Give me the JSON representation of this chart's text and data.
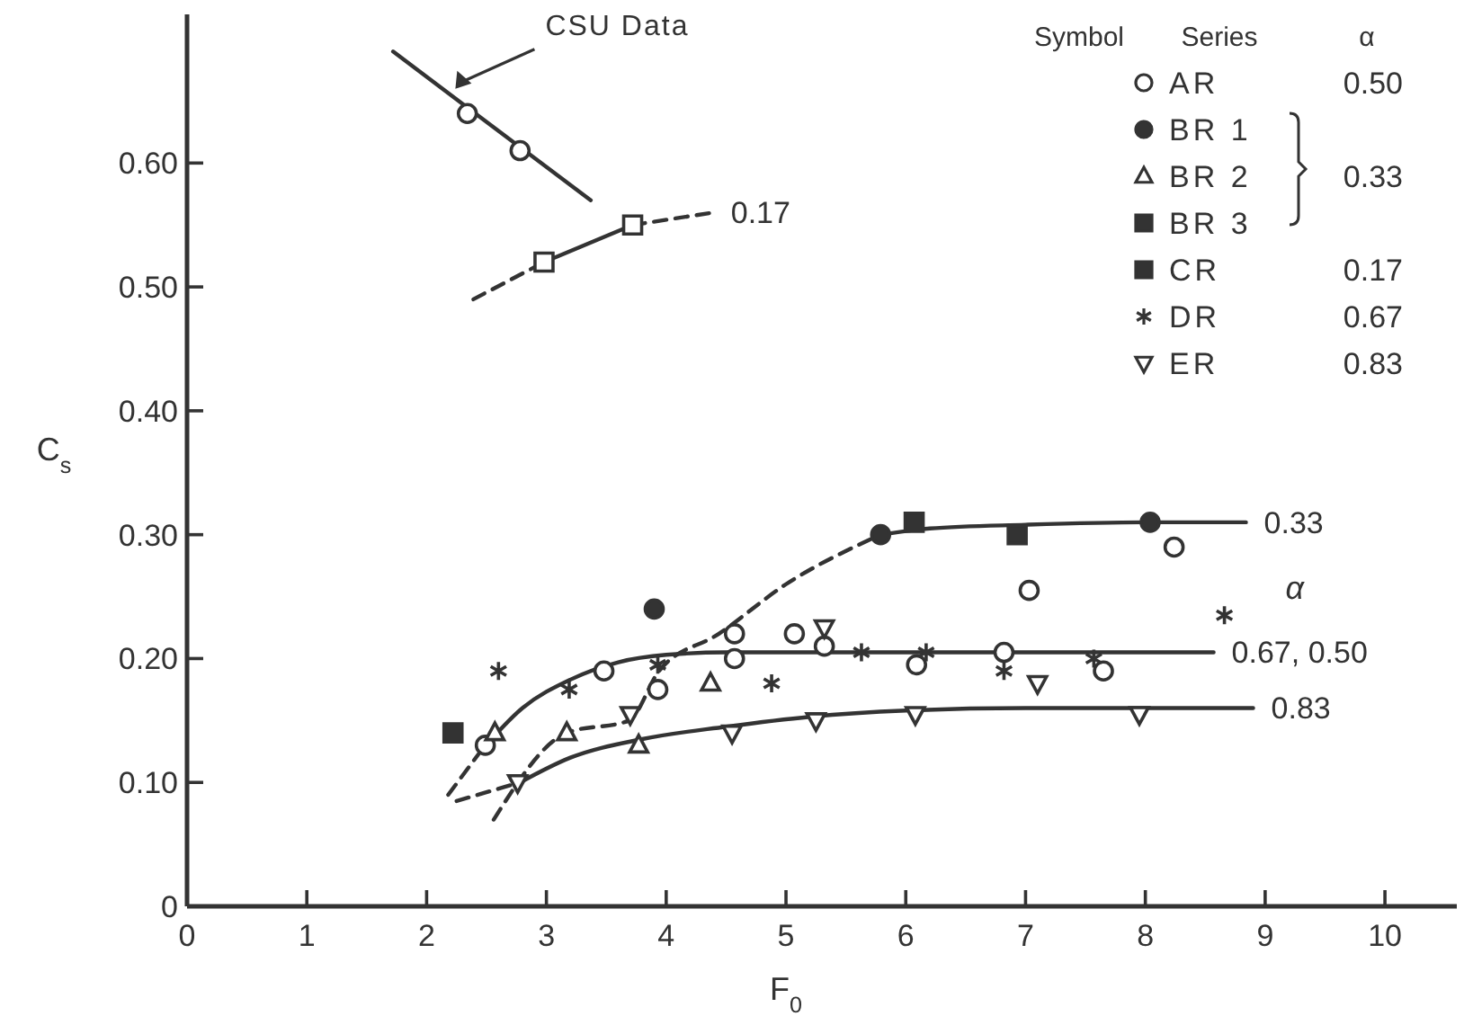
{
  "chart_data": {
    "type": "scatter",
    "xlabel": "F$_{0}$",
    "ylabel": "C$_{s}$",
    "xlim": [
      0,
      10.6
    ],
    "ylim": [
      0,
      0.72
    ],
    "xticks": [
      0,
      1,
      2,
      3,
      4,
      5,
      6,
      7,
      8,
      9,
      10
    ],
    "yticks": [
      0,
      {
        "value": 0.1,
        "label": "0.10"
      },
      {
        "value": 0.2,
        "label": "0.20"
      },
      {
        "value": 0.3,
        "label": "0.30"
      },
      {
        "value": 0.4,
        "label": "0.40"
      },
      {
        "value": 0.5,
        "label": "0.50"
      },
      {
        "value": 0.6,
        "label": "0.60"
      }
    ],
    "grid": false,
    "legend": "top right",
    "series": [
      {
        "type": "line",
        "color": "#333333",
        "line_style": "solid",
        "marker": "none",
        "x": [
          1.72,
          3.37
        ],
        "values": [
          0.69,
          0.57
        ]
      },
      {
        "type": "line",
        "color": "#333333",
        "line_style": "dashed",
        "marker": "none",
        "x": [
          2.39,
          2.98
        ],
        "values": [
          0.49,
          0.52
        ]
      },
      {
        "type": "line",
        "color": "#333333",
        "line_style": "solid",
        "marker": "none",
        "x": [
          2.98,
          3.72
        ],
        "values": [
          0.52,
          0.55
        ]
      },
      {
        "type": "line",
        "color": "#333333",
        "line_style": "dashed",
        "marker": "none",
        "x": [
          3.72,
          4.39
        ],
        "values": [
          0.55,
          0.56
        ]
      },
      {
        "type": "line",
        "color": "#333333",
        "line_style": "dashed",
        "marker": "none",
        "x": [
          2.56,
          3.17,
          3.69,
          3.94,
          4.44,
          5.0,
          5.79
        ],
        "values": [
          0.07,
          0.14,
          0.15,
          0.19,
          0.22,
          0.26,
          0.3
        ]
      },
      {
        "type": "line",
        "color": "#333333",
        "line_style": "solid",
        "marker": "none",
        "x": [
          5.79,
          6.2,
          7.0,
          8.0,
          8.84
        ],
        "values": [
          0.3,
          0.305,
          0.308,
          0.31,
          0.31
        ]
      },
      {
        "type": "line",
        "color": "#333333",
        "line_style": "dashed",
        "marker": "none",
        "x": [
          2.18,
          2.45
        ],
        "values": [
          0.09,
          0.125
        ]
      },
      {
        "type": "line",
        "color": "#333333",
        "line_style": "solid",
        "marker": "none",
        "x": [
          2.45,
          2.8,
          3.2,
          3.6,
          4.0,
          4.5,
          5.5,
          8.57
        ],
        "values": [
          0.125,
          0.16,
          0.183,
          0.197,
          0.203,
          0.205,
          0.205,
          0.205
        ]
      },
      {
        "type": "line",
        "color": "#333333",
        "line_style": "dashed",
        "marker": "none",
        "x": [
          2.25,
          2.78
        ],
        "values": [
          0.085,
          0.1
        ]
      },
      {
        "type": "line",
        "color": "#333333",
        "line_style": "solid",
        "marker": "none",
        "x": [
          2.78,
          3.2,
          3.8,
          4.5,
          5.2,
          6.0,
          7.0,
          8.9
        ],
        "values": [
          0.1,
          0.12,
          0.135,
          0.145,
          0.153,
          0.158,
          0.16,
          0.16
        ]
      },
      {
        "color": "#333333",
        "marker": "circle",
        "x": [
          2.34,
          2.78
        ],
        "values": [
          0.64,
          0.61
        ]
      },
      {
        "color": "#333333",
        "marker": "square",
        "x": [
          2.98,
          3.72
        ],
        "values": [
          0.52,
          0.55
        ]
      },
      {
        "name": "AR",
        "color": "#333333",
        "marker": "circle",
        "x": [
          2.49,
          3.48,
          3.93,
          4.57,
          4.57,
          5.07,
          5.32,
          6.09,
          6.82,
          7.03,
          7.65,
          8.24
        ],
        "values": [
          0.13,
          0.19,
          0.175,
          0.22,
          0.2,
          0.22,
          0.21,
          0.195,
          0.205,
          0.255,
          0.19,
          0.29
        ]
      },
      {
        "name": "BR 1",
        "color": "#333333",
        "marker": "circle-filled",
        "x": [
          3.9,
          5.79,
          8.04
        ],
        "values": [
          0.24,
          0.3,
          0.31
        ]
      },
      {
        "name": "BR 2",
        "color": "#333333",
        "marker": "triangle",
        "x": [
          2.57,
          3.17,
          3.77,
          4.37
        ],
        "values": [
          0.14,
          0.14,
          0.13,
          0.18
        ]
      },
      {
        "name": "BR 3",
        "color": "#333333",
        "marker": "square-filled",
        "x": [
          6.07,
          6.93
        ],
        "values": [
          0.31,
          0.3
        ]
      },
      {
        "name": "CR",
        "color": "#333333",
        "marker": "square-filled",
        "x": [
          2.22
        ],
        "values": [
          0.14
        ]
      },
      {
        "name": "DR",
        "color": "#333333",
        "marker": "cross",
        "x": [
          2.6,
          3.19,
          3.93,
          4.88,
          5.63,
          6.17,
          6.82,
          7.57,
          8.66
        ],
        "values": [
          0.19,
          0.175,
          0.195,
          0.18,
          0.205,
          0.205,
          0.19,
          0.2,
          0.235
        ]
      },
      {
        "name": "ER",
        "color": "#333333",
        "marker": "triangle-down",
        "x": [
          2.76,
          3.7,
          4.55,
          5.25,
          5.32,
          6.08,
          7.1,
          7.95
        ],
        "values": [
          0.1,
          0.155,
          0.14,
          0.15,
          0.225,
          0.155,
          0.18,
          0.155
        ]
      }
    ],
    "annotations": [
      {
        "text": "CSU Data",
        "x": 2.24,
        "y": 0.66
      },
      {
        "text": "0.17",
        "x": 4.39,
        "y": 0.56
      },
      {
        "text": "0.33",
        "x": 8.84,
        "y": 0.31
      },
      {
        "text": "0.67, 0.50",
        "x": 8.57,
        "y": 0.205
      },
      {
        "text": "0.83",
        "x": 8.9,
        "y": 0.16
      },
      "Symbol",
      "Series",
      "α",
      "0.50",
      "0.33",
      "0.17",
      "0.67",
      "0.83",
      "α"
    ]
  }
}
